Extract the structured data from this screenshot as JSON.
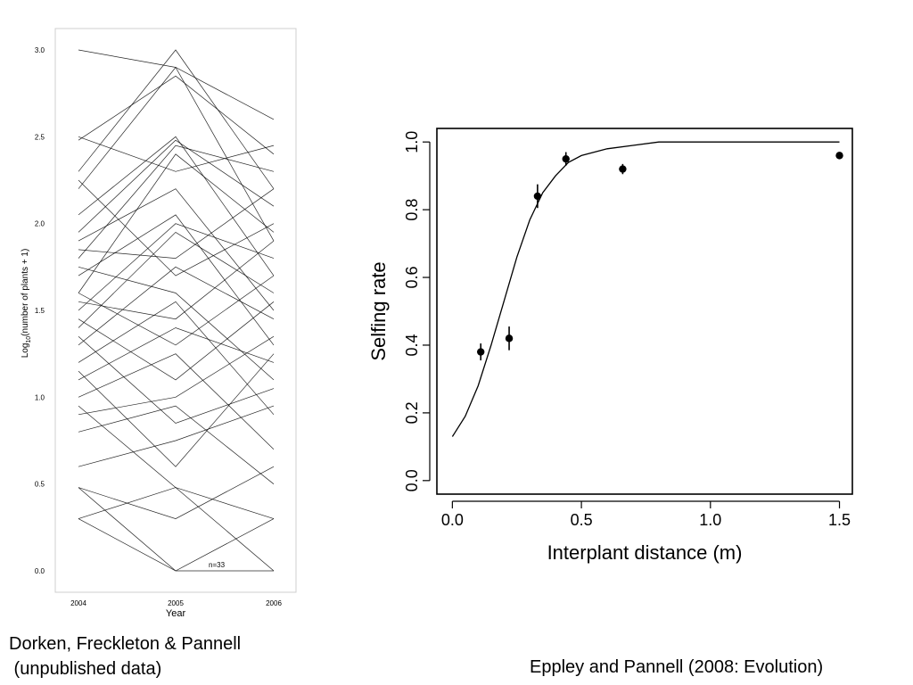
{
  "chart_data": [
    {
      "type": "line",
      "xlabel": "Year",
      "ylabel_main": "Log",
      "ylabel_sub": "10",
      "ylabel_rest": "(number of plants + 1)",
      "x_ticks": [
        "2004",
        "2005",
        "2006"
      ],
      "y_ticks": [
        "0.0",
        "0.5",
        "1.0",
        "1.5",
        "2.0",
        "2.5",
        "3.0"
      ],
      "ylim": [
        0,
        3
      ],
      "annotation": "n=33",
      "grid": false,
      "legend": "none",
      "line_color": "#000000",
      "series": [
        {
          "values": [
            3.0,
            2.9,
            2.6
          ]
        },
        {
          "values": [
            2.3,
            3.0,
            2.2
          ]
        },
        {
          "values": [
            2.48,
            2.85,
            2.4
          ]
        },
        {
          "values": [
            2.2,
            2.9,
            1.9
          ]
        },
        {
          "values": [
            2.5,
            2.3,
            2.45
          ]
        },
        {
          "values": [
            1.95,
            2.48,
            2.1
          ]
        },
        {
          "values": [
            2.05,
            2.5,
            1.7
          ]
        },
        {
          "values": [
            1.8,
            2.45,
            2.3
          ]
        },
        {
          "values": [
            1.6,
            2.4,
            1.95
          ]
        },
        {
          "values": [
            1.9,
            2.2,
            1.5
          ]
        },
        {
          "values": [
            2.25,
            1.7,
            2.0
          ]
        },
        {
          "values": [
            1.7,
            2.05,
            1.3
          ]
        },
        {
          "values": [
            1.5,
            2.0,
            1.8
          ]
        },
        {
          "values": [
            1.85,
            1.8,
            2.2
          ]
        },
        {
          "values": [
            1.4,
            1.95,
            1.6
          ]
        },
        {
          "values": [
            1.75,
            1.6,
            1.1
          ]
        },
        {
          "values": [
            1.3,
            1.75,
            1.45
          ]
        },
        {
          "values": [
            1.6,
            1.3,
            1.7
          ]
        },
        {
          "values": [
            1.2,
            1.55,
            0.9
          ]
        },
        {
          "values": [
            1.55,
            1.45,
            1.9
          ]
        },
        {
          "values": [
            1.1,
            1.4,
            1.2
          ]
        },
        {
          "values": [
            1.45,
            1.1,
            1.55
          ]
        },
        {
          "values": [
            1.0,
            1.25,
            0.7
          ]
        },
        {
          "values": [
            0.9,
            1.0,
            1.35
          ]
        },
        {
          "values": [
            1.35,
            0.85,
            1.05
          ]
        },
        {
          "values": [
            0.8,
            0.95,
            0.5
          ]
        },
        {
          "values": [
            1.15,
            0.6,
            1.25
          ]
        },
        {
          "values": [
            0.6,
            0.75,
            0.95
          ]
        },
        {
          "values": [
            0.48,
            0.3,
            0.6
          ]
        },
        {
          "values": [
            0.3,
            0.48,
            0.3
          ]
        },
        {
          "values": [
            0.95,
            0.48,
            0.0
          ]
        },
        {
          "values": [
            0.48,
            0.0,
            0.3
          ]
        },
        {
          "values": [
            0.3,
            0.0,
            0.0
          ]
        }
      ]
    },
    {
      "type": "scatter",
      "xlabel": "Interplant distance (m)",
      "ylabel": "Selfing rate",
      "x_ticks": [
        "0.0",
        "0.5",
        "1.0",
        "1.5"
      ],
      "y_ticks": [
        "0.0",
        "0.2",
        "0.4",
        "0.6",
        "0.8",
        "1.0"
      ],
      "xlim": [
        -0.06,
        1.55
      ],
      "ylim": [
        -0.04,
        1.04
      ],
      "grid": false,
      "legend": "none",
      "points": [
        {
          "x": 0.11,
          "y": 0.38,
          "err": 0.025
        },
        {
          "x": 0.22,
          "y": 0.42,
          "err": 0.035
        },
        {
          "x": 0.33,
          "y": 0.84,
          "err": 0.035
        },
        {
          "x": 0.44,
          "y": 0.95,
          "err": 0.02
        },
        {
          "x": 0.66,
          "y": 0.92,
          "err": 0.015
        },
        {
          "x": 1.5,
          "y": 0.96,
          "err": 0.01
        }
      ],
      "fit_curve": {
        "x": [
          0.0,
          0.05,
          0.1,
          0.15,
          0.2,
          0.25,
          0.3,
          0.35,
          0.4,
          0.45,
          0.5,
          0.6,
          0.7,
          0.8,
          0.9,
          1.0,
          1.2,
          1.5
        ],
        "y": [
          0.13,
          0.19,
          0.28,
          0.4,
          0.53,
          0.66,
          0.77,
          0.85,
          0.9,
          0.94,
          0.96,
          0.98,
          0.99,
          1.0,
          1.0,
          1.0,
          1.0,
          1.0
        ]
      }
    }
  ],
  "captions": {
    "left_line1": "Dorken, Freckleton & Pannell",
    "left_line2": " (unpublished data)",
    "right": "Eppley and Pannell (2008: Evolution)"
  }
}
